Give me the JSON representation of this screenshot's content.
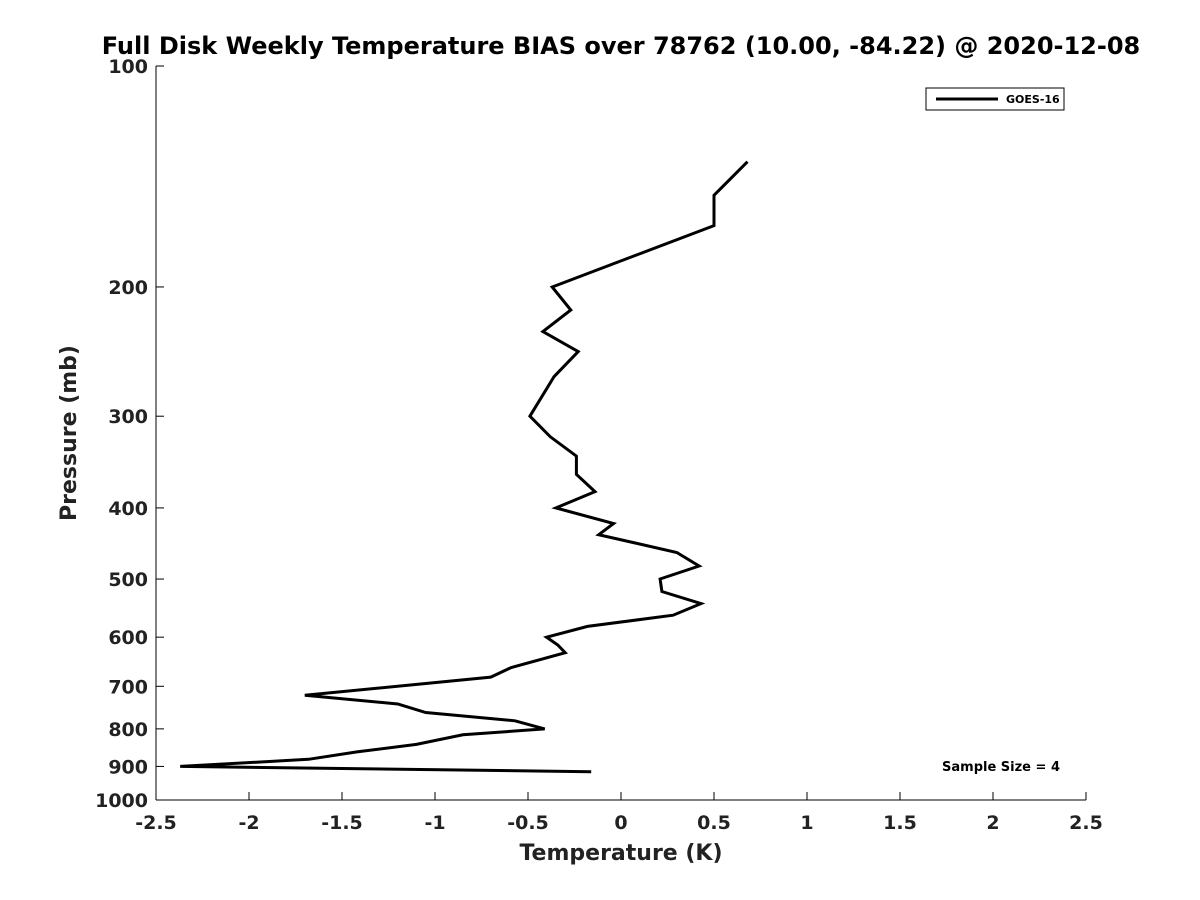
{
  "chart_data": {
    "type": "line",
    "title": "Full Disk Weekly Temperature BIAS over 78762 (10.00, -84.22) @ 2020-12-08",
    "xlabel": "Temperature (K)",
    "ylabel": "Pressure (mb)",
    "xlim": [
      -2.5,
      2.5
    ],
    "ylim": [
      1000,
      100
    ],
    "yscale": "log",
    "y_reversed": true,
    "grid": false,
    "legend_position": "top-right",
    "x_ticks": [
      -2.5,
      -2,
      -1.5,
      -1,
      -0.5,
      0,
      0.5,
      1,
      1.5,
      2,
      2.5
    ],
    "x_tick_labels": [
      "-2.5",
      "-2",
      "-1.5",
      "-1",
      "-0.5",
      "0",
      "0.5",
      "1",
      "1.5",
      "2",
      "2.5"
    ],
    "y_ticks": [
      100,
      200,
      300,
      400,
      500,
      600,
      700,
      800,
      900,
      1000
    ],
    "y_tick_labels": [
      "100",
      "200",
      "300",
      "400",
      "500",
      "600",
      "700",
      "800",
      "900",
      "1000"
    ],
    "series": [
      {
        "name": "GOES-16",
        "color": "#000000",
        "points": [
          {
            "x": 0.68,
            "p": 135
          },
          {
            "x": 0.5,
            "p": 150
          },
          {
            "x": 0.5,
            "p": 165
          },
          {
            "x": -0.37,
            "p": 200
          },
          {
            "x": -0.27,
            "p": 215
          },
          {
            "x": -0.42,
            "p": 230
          },
          {
            "x": -0.23,
            "p": 245
          },
          {
            "x": -0.36,
            "p": 265
          },
          {
            "x": -0.49,
            "p": 300
          },
          {
            "x": -0.38,
            "p": 320
          },
          {
            "x": -0.24,
            "p": 340
          },
          {
            "x": -0.24,
            "p": 360
          },
          {
            "x": -0.14,
            "p": 380
          },
          {
            "x": -0.35,
            "p": 400
          },
          {
            "x": -0.04,
            "p": 420
          },
          {
            "x": -0.12,
            "p": 435
          },
          {
            "x": 0.3,
            "p": 460
          },
          {
            "x": 0.42,
            "p": 480
          },
          {
            "x": 0.21,
            "p": 500
          },
          {
            "x": 0.22,
            "p": 520
          },
          {
            "x": 0.43,
            "p": 540
          },
          {
            "x": 0.28,
            "p": 560
          },
          {
            "x": -0.18,
            "p": 580
          },
          {
            "x": -0.4,
            "p": 600
          },
          {
            "x": -0.34,
            "p": 615
          },
          {
            "x": -0.3,
            "p": 630
          },
          {
            "x": -0.59,
            "p": 660
          },
          {
            "x": -0.7,
            "p": 680
          },
          {
            "x": -1.7,
            "p": 720
          },
          {
            "x": -1.2,
            "p": 740
          },
          {
            "x": -1.05,
            "p": 760
          },
          {
            "x": -0.57,
            "p": 780
          },
          {
            "x": -0.41,
            "p": 800
          },
          {
            "x": -0.85,
            "p": 815
          },
          {
            "x": -1.1,
            "p": 840
          },
          {
            "x": -1.42,
            "p": 860
          },
          {
            "x": -1.68,
            "p": 880
          },
          {
            "x": -2.37,
            "p": 900
          },
          {
            "x": -0.16,
            "p": 915
          }
        ]
      }
    ],
    "annotation": "Sample Size = 4"
  }
}
